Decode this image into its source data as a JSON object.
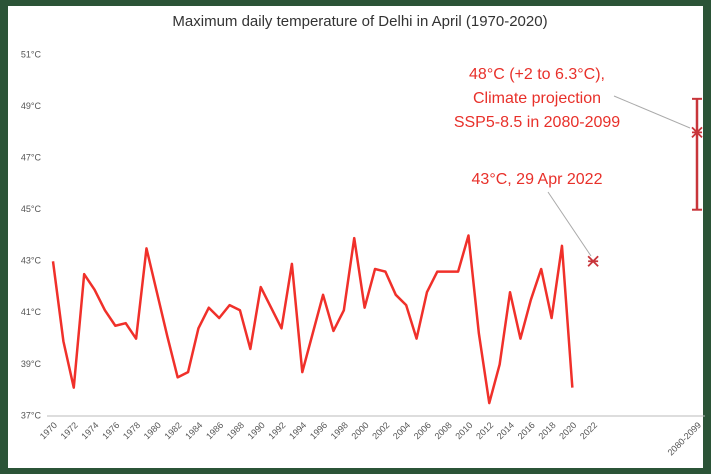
{
  "chart_data": {
    "type": "line",
    "title": "Maximum daily temperature of Delhi in April (1970-2020)",
    "categories": [
      "1970",
      null,
      "1972",
      null,
      "1974",
      null,
      "1976",
      null,
      "1978",
      null,
      "1980",
      null,
      "1982",
      null,
      "1984",
      null,
      "1986",
      null,
      "1988",
      null,
      "1990",
      null,
      "1992",
      null,
      "1994",
      null,
      "1996",
      null,
      "1998",
      null,
      "2000",
      null,
      "2002",
      null,
      "2004",
      null,
      "2006",
      null,
      "2008",
      null,
      "2010",
      null,
      "2012",
      null,
      "2014",
      null,
      "2016",
      null,
      "2018",
      null,
      "2020",
      null,
      "2022",
      null,
      null,
      null,
      null,
      null,
      null,
      null,
      null,
      null,
      "2080-2099"
    ],
    "series": [
      {
        "color": "#f0302a",
        "values": [
          43,
          39.9,
          38.1,
          42.5,
          41.9,
          41.1,
          40.5,
          40.6,
          40,
          43.5,
          41.8,
          40.1,
          38.5,
          38.7,
          40.4,
          41.2,
          40.8,
          41.3,
          41.1,
          39.6,
          42,
          41.2,
          40.4,
          42.9,
          38.7,
          40.2,
          41.7,
          40.3,
          41.1,
          43.9,
          41.2,
          42.7,
          42.6,
          41.7,
          41.3,
          40,
          41.8,
          42.6,
          42.6,
          42.6,
          44,
          40.2,
          37.5,
          39,
          41.8,
          40,
          41.5,
          42.7,
          40.8,
          43.6,
          38.1,
          null,
          null,
          null,
          null,
          null,
          null,
          null,
          null,
          null,
          null,
          null,
          null
        ]
      },
      {
        "color": "#c8353a",
        "marker": "asterisk",
        "values": [
          null,
          null,
          null,
          null,
          null,
          null,
          null,
          null,
          null,
          null,
          null,
          null,
          null,
          null,
          null,
          null,
          null,
          null,
          null,
          null,
          null,
          null,
          null,
          null,
          null,
          null,
          null,
          null,
          null,
          null,
          null,
          null,
          null,
          null,
          null,
          null,
          null,
          null,
          null,
          null,
          null,
          null,
          null,
          null,
          null,
          null,
          null,
          null,
          null,
          null,
          null,
          null,
          43,
          null,
          null,
          null,
          null,
          null,
          null,
          null,
          null,
          null,
          48
        ],
        "lower": [
          null,
          null,
          null,
          null,
          null,
          null,
          null,
          null,
          null,
          null,
          null,
          null,
          null,
          null,
          null,
          null,
          null,
          null,
          null,
          null,
          null,
          null,
          null,
          null,
          null,
          null,
          null,
          null,
          null,
          null,
          null,
          null,
          null,
          null,
          null,
          null,
          null,
          null,
          null,
          null,
          null,
          null,
          null,
          null,
          null,
          null,
          null,
          null,
          null,
          null,
          null,
          null,
          null,
          null,
          null,
          null,
          null,
          null,
          null,
          null,
          null,
          null,
          45
        ],
        "upper": [
          null,
          null,
          null,
          null,
          null,
          null,
          null,
          null,
          null,
          null,
          null,
          null,
          null,
          null,
          null,
          null,
          null,
          null,
          null,
          null,
          null,
          null,
          null,
          null,
          null,
          null,
          null,
          null,
          null,
          null,
          null,
          null,
          null,
          null,
          null,
          null,
          null,
          null,
          null,
          null,
          null,
          null,
          null,
          null,
          null,
          null,
          null,
          null,
          null,
          null,
          null,
          null,
          null,
          null,
          null,
          null,
          null,
          null,
          null,
          null,
          null,
          null,
          49.3
        ]
      }
    ],
    "ylim": [
      37,
      51
    ],
    "yticks": [
      {
        "value": 37,
        "label": "37°C"
      },
      {
        "value": 39,
        "label": "39°C"
      },
      {
        "value": 41,
        "label": "41°C"
      },
      {
        "value": 43,
        "label": "43°C"
      },
      {
        "value": 45,
        "label": "45°C"
      },
      {
        "value": 47,
        "label": "47°C"
      },
      {
        "value": 49,
        "label": "49°C"
      },
      {
        "value": 51,
        "label": "51°C"
      }
    ],
    "grid": false,
    "annotations": [
      {
        "text": "43°C, 29 Apr 2022"
      },
      {
        "lines": [
          "48°C (+2 to 6.3°C),",
          "Climate projection",
          "SSP5-8.5 in 2080-2099"
        ]
      }
    ]
  }
}
